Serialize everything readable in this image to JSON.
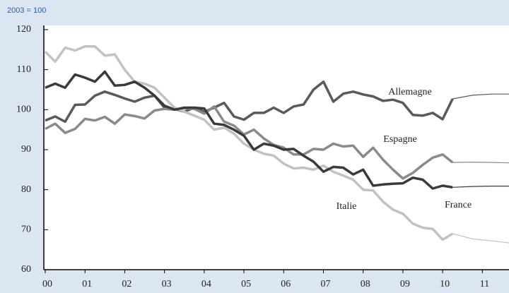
{
  "chart_data": {
    "type": "line",
    "subtitle": "2003 = 100",
    "x": [
      2000,
      2000.25,
      2000.5,
      2000.75,
      2001,
      2001.25,
      2001.5,
      2001.75,
      2002,
      2002.25,
      2002.5,
      2002.75,
      2003,
      2003.25,
      2003.5,
      2003.75,
      2004,
      2004.25,
      2004.5,
      2004.75,
      2005,
      2005.25,
      2005.5,
      2005.75,
      2006,
      2006.25,
      2006.5,
      2006.75,
      2007,
      2007.25,
      2007.5,
      2007.75,
      2008,
      2008.25,
      2008.5,
      2008.75,
      2009,
      2009.25,
      2009.5,
      2009.75,
      2010,
      2010.25
    ],
    "x_projection": [
      2010.25,
      2010.75,
      2011.25,
      2011.67
    ],
    "series": [
      {
        "name": "Allemagne",
        "color": "#5a5a5a",
        "values": [
          97.3,
          98.3,
          97,
          101.2,
          101.3,
          103.5,
          104.5,
          103.7,
          102.8,
          102,
          103,
          103.5,
          100.5,
          100.2,
          99.5,
          100.5,
          99.5,
          100.5,
          101.7,
          98.3,
          97.5,
          99.2,
          99.2,
          100.5,
          99.2,
          100.8,
          101.3,
          105,
          107,
          102,
          104,
          104.5,
          103.8,
          103.3,
          102.2,
          102.5,
          101.7,
          98.7,
          98.5,
          99.2,
          97.6,
          102.7
        ],
        "projection": [
          102.7,
          103.6,
          103.9,
          103.9
        ]
      },
      {
        "name": "Espagne",
        "color": "#8a8a8a",
        "values": [
          95.2,
          96.5,
          94.2,
          95.2,
          97.7,
          97.3,
          98.2,
          96.5,
          98.8,
          98.4,
          97.8,
          99.8,
          100.2,
          100,
          100.4,
          100.2,
          99,
          100.8,
          97,
          96,
          93.8,
          95,
          92.8,
          91.2,
          90.5,
          88.8,
          88.8,
          90.2,
          90,
          91.5,
          90.8,
          91,
          88.2,
          90.5,
          87.5,
          85,
          82.8,
          84.2,
          86.2,
          88,
          88.8,
          86.8
        ],
        "projection": [
          86.8,
          86.9,
          86.8,
          86.7
        ]
      },
      {
        "name": "Italie",
        "color": "#c2c2c2",
        "values": [
          114.5,
          112,
          115.5,
          114.8,
          115.8,
          115.8,
          113.5,
          113.8,
          110,
          107,
          106.5,
          105.5,
          103,
          100.5,
          99.5,
          98.5,
          97.5,
          95,
          95.5,
          94,
          91.5,
          90,
          89,
          88.5,
          86.5,
          85.3,
          85.5,
          85,
          86,
          84.5,
          83.5,
          82.5,
          80,
          79.8,
          77,
          75,
          74,
          71.5,
          70.5,
          70.2,
          67.5,
          69
        ],
        "projection": [
          69,
          67.7,
          67.2,
          66.7
        ]
      },
      {
        "name": "France",
        "color": "#3a3a3a",
        "values": [
          105.5,
          106.5,
          105.5,
          108.8,
          108,
          107,
          109.5,
          106,
          106.2,
          107,
          105.5,
          103.5,
          101,
          100,
          100.5,
          100.5,
          100.3,
          96.5,
          96.2,
          95,
          93.5,
          90,
          91.5,
          91,
          90,
          90.2,
          88.5,
          87,
          84.5,
          85.7,
          85.5,
          83.8,
          85,
          81,
          81.3,
          81.5,
          81.6,
          83,
          82.5,
          80.3,
          81,
          80.6
        ],
        "projection": [
          80.6,
          80.8,
          80.9,
          80.9
        ]
      }
    ],
    "xlim": [
      2000,
      2011.67
    ],
    "xticks": [
      {
        "value": 2000,
        "label": "00"
      },
      {
        "value": 2001,
        "label": "01"
      },
      {
        "value": 2002,
        "label": "02"
      },
      {
        "value": 2003,
        "label": "03"
      },
      {
        "value": 2004,
        "label": "04"
      },
      {
        "value": 2005,
        "label": "05"
      },
      {
        "value": 2006,
        "label": "06"
      },
      {
        "value": 2007,
        "label": "07"
      },
      {
        "value": 2008,
        "label": "08"
      },
      {
        "value": 2009,
        "label": "09"
      },
      {
        "value": 2010,
        "label": "10"
      },
      {
        "value": 2011,
        "label": "11"
      }
    ],
    "ylim": [
      60,
      120
    ],
    "yticks": [
      60,
      70,
      80,
      90,
      100,
      110,
      120
    ]
  }
}
